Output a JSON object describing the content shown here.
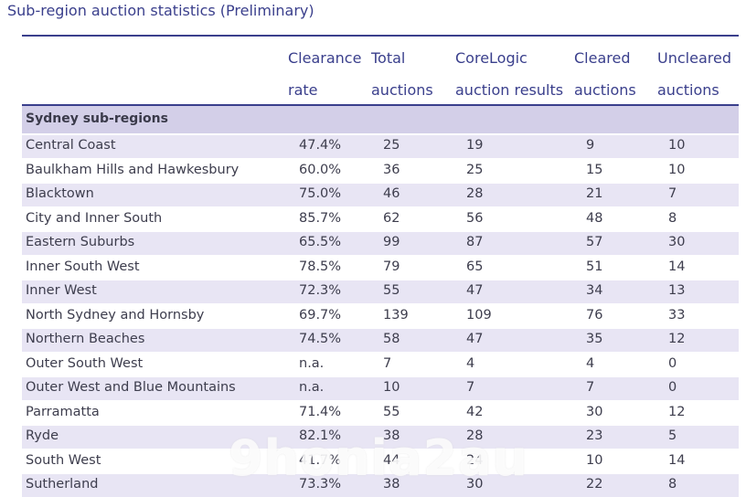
{
  "title": "Sub-region auction statistics (Preliminary)",
  "headers": {
    "rate": [
      "Clearance",
      "rate"
    ],
    "total": [
      "Total",
      "auctions"
    ],
    "core": [
      "CoreLogic",
      "auction results"
    ],
    "cleared": [
      "Cleared",
      "auctions"
    ],
    "uncleared": [
      "Uncleared",
      "auctions"
    ]
  },
  "section_label": "Sydney sub-regions",
  "rows": [
    {
      "name": "Central Coast",
      "rate": "47.4%",
      "total": "25",
      "core": "19",
      "cleared": "9",
      "uncleared": "10"
    },
    {
      "name": "Baulkham Hills and Hawkesbury",
      "rate": "60.0%",
      "total": "36",
      "core": "25",
      "cleared": "15",
      "uncleared": "10"
    },
    {
      "name": "Blacktown",
      "rate": "75.0%",
      "total": "46",
      "core": "28",
      "cleared": "21",
      "uncleared": "7"
    },
    {
      "name": "City and Inner South",
      "rate": "85.7%",
      "total": "62",
      "core": "56",
      "cleared": "48",
      "uncleared": "8"
    },
    {
      "name": "Eastern Suburbs",
      "rate": "65.5%",
      "total": "99",
      "core": "87",
      "cleared": "57",
      "uncleared": "30"
    },
    {
      "name": "Inner South West",
      "rate": "78.5%",
      "total": "79",
      "core": "65",
      "cleared": "51",
      "uncleared": "14"
    },
    {
      "name": "Inner West",
      "rate": "72.3%",
      "total": "55",
      "core": "47",
      "cleared": "34",
      "uncleared": "13"
    },
    {
      "name": "North Sydney and Hornsby",
      "rate": "69.7%",
      "total": "139",
      "core": "109",
      "cleared": "76",
      "uncleared": "33"
    },
    {
      "name": "Northern Beaches",
      "rate": "74.5%",
      "total": "58",
      "core": "47",
      "cleared": "35",
      "uncleared": "12"
    },
    {
      "name": "Outer South West",
      "rate": "n.a.",
      "total": "7",
      "core": "4",
      "cleared": "4",
      "uncleared": "0"
    },
    {
      "name": "Outer West and Blue Mountains",
      "rate": "n.a.",
      "total": "10",
      "core": "7",
      "cleared": "7",
      "uncleared": "0"
    },
    {
      "name": "Parramatta",
      "rate": "71.4%",
      "total": "55",
      "core": "42",
      "cleared": "30",
      "uncleared": "12"
    },
    {
      "name": "Ryde",
      "rate": "82.1%",
      "total": "38",
      "core": "28",
      "cleared": "23",
      "uncleared": "5"
    },
    {
      "name": "South West",
      "rate": "41.7%",
      "total": "44",
      "core": "24",
      "cleared": "10",
      "uncleared": "14"
    },
    {
      "name": "Sutherland",
      "rate": "73.3%",
      "total": "38",
      "core": "30",
      "cleared": "22",
      "uncleared": "8"
    }
  ],
  "watermark": "9honia2au",
  "colors": {
    "accent": "#3a3f8c",
    "section_bg": "#d3cfe8",
    "row_shade": "#e8e5f4"
  }
}
